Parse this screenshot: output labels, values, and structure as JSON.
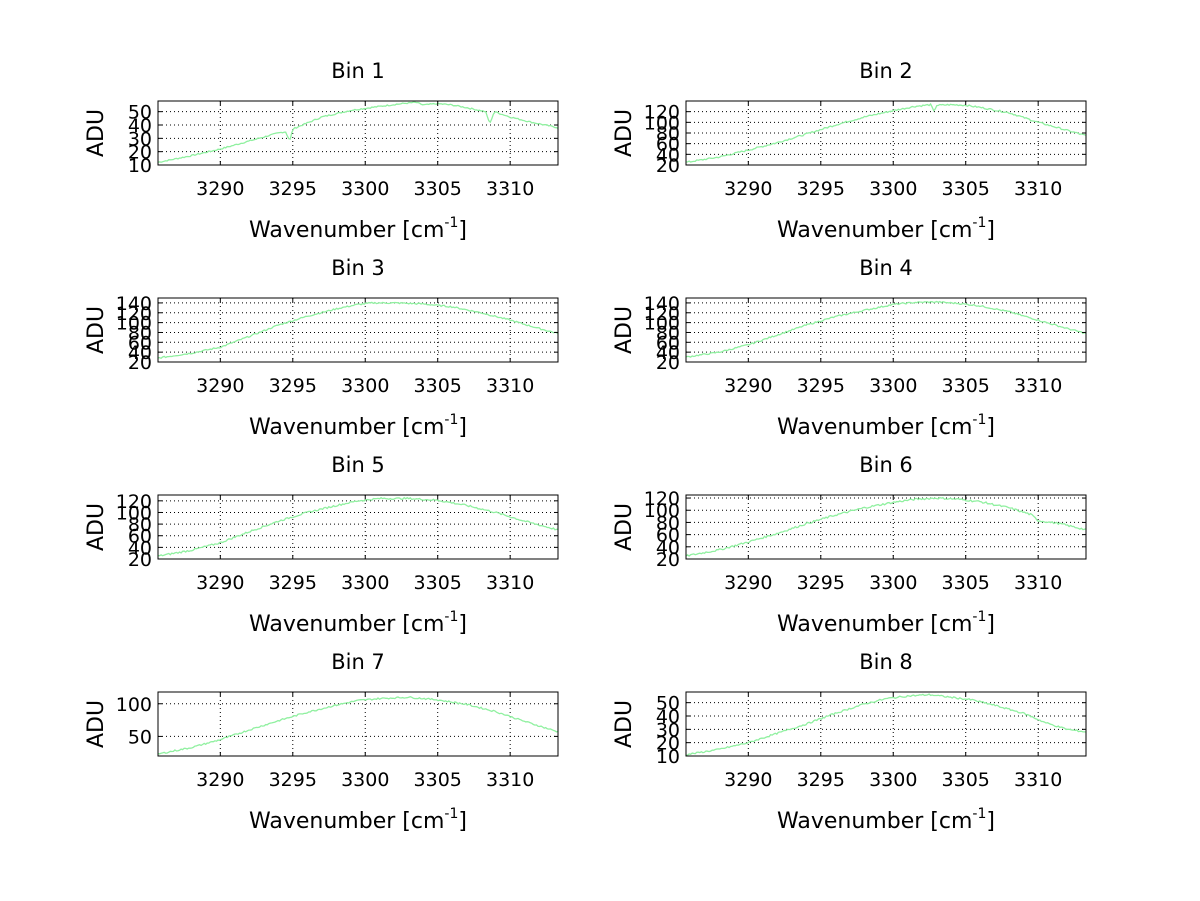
{
  "figure": {
    "series_color": "#90f0a0",
    "grid_color": "#000000"
  },
  "chart_data": [
    {
      "type": "line",
      "title": "Bin 1",
      "xlabel": "Wavenumber [cm",
      "xlabel_sup": "-1",
      "xlabel_end": "]",
      "ylabel": "ADU",
      "xlim": [
        3285.7,
        3313.3
      ],
      "ylim": [
        10,
        58
      ],
      "xticks": [
        3290,
        3295,
        3300,
        3305,
        3310
      ],
      "yticks": [
        10,
        20,
        30,
        40,
        50
      ],
      "series": [
        {
          "name": "Bin 1",
          "x": [
            3285.7,
            3288,
            3290,
            3292,
            3294,
            3294.5,
            3294.8,
            3295,
            3297,
            3299,
            3301,
            3302.5,
            3303.5,
            3304,
            3305,
            3306,
            3307,
            3308.3,
            3308.6,
            3308.9,
            3310,
            3311.5,
            3313.3
          ],
          "y": [
            12,
            17,
            22,
            28,
            34,
            35,
            28,
            37,
            46,
            51,
            54,
            56,
            57,
            55,
            56,
            55,
            53,
            50,
            41,
            50,
            46,
            42,
            38
          ],
          "noise": 0.5
        }
      ]
    },
    {
      "type": "line",
      "title": "Bin 2",
      "xlabel": "Wavenumber [cm",
      "xlabel_sup": "-1",
      "xlabel_end": "]",
      "ylabel": "ADU",
      "xlim": [
        3285.7,
        3313.3
      ],
      "ylim": [
        20,
        140
      ],
      "xticks": [
        3290,
        3295,
        3300,
        3305,
        3310
      ],
      "yticks": [
        20,
        40,
        60,
        80,
        100,
        120
      ],
      "series": [
        {
          "name": "Bin 2",
          "x": [
            3285.7,
            3288,
            3290,
            3292,
            3294,
            3296,
            3298,
            3300,
            3301.5,
            3302.6,
            3302.8,
            3303,
            3304,
            3305,
            3306,
            3308,
            3310,
            3312,
            3313.3
          ],
          "y": [
            25,
            35,
            48,
            62,
            78,
            95,
            110,
            122,
            130,
            133,
            120,
            132,
            133,
            132,
            128,
            118,
            100,
            85,
            75
          ],
          "noise": 1.5
        }
      ]
    },
    {
      "type": "line",
      "title": "Bin 3",
      "xlabel": "Wavenumber [cm",
      "xlabel_sup": "-1",
      "xlabel_end": "]",
      "ylabel": "ADU",
      "xlim": [
        3285.7,
        3313.3
      ],
      "ylim": [
        20,
        150
      ],
      "xticks": [
        3290,
        3295,
        3300,
        3305,
        3310
      ],
      "yticks": [
        20,
        40,
        60,
        80,
        100,
        120,
        140
      ],
      "series": [
        {
          "name": "Bin 3",
          "x": [
            3285.7,
            3288,
            3290,
            3292,
            3294,
            3296,
            3298,
            3299.5,
            3300.5,
            3302,
            3304,
            3306,
            3308,
            3310,
            3312,
            3313.3
          ],
          "y": [
            28,
            38,
            50,
            72,
            95,
            113,
            128,
            137,
            140,
            140,
            138,
            132,
            120,
            105,
            88,
            78
          ],
          "noise": 1.5
        }
      ]
    },
    {
      "type": "line",
      "title": "Bin 4",
      "xlabel": "Wavenumber [cm",
      "xlabel_sup": "-1",
      "xlabel_end": "]",
      "ylabel": "ADU",
      "xlim": [
        3285.7,
        3313.3
      ],
      "ylim": [
        20,
        150
      ],
      "xticks": [
        3290,
        3295,
        3300,
        3305,
        3310
      ],
      "yticks": [
        20,
        40,
        60,
        80,
        100,
        120,
        140
      ],
      "series": [
        {
          "name": "Bin 4",
          "x": [
            3285.7,
            3288,
            3290,
            3292,
            3294,
            3296,
            3298,
            3300,
            3301.5,
            3303,
            3304.5,
            3306,
            3308,
            3310,
            3312,
            3313.3
          ],
          "y": [
            30,
            40,
            55,
            75,
            95,
            112,
            125,
            137,
            141,
            142,
            139,
            134,
            122,
            105,
            88,
            78
          ],
          "noise": 1.5
        }
      ]
    },
    {
      "type": "line",
      "title": "Bin 5",
      "xlabel": "Wavenumber [cm",
      "xlabel_sup": "-1",
      "xlabel_end": "]",
      "ylabel": "ADU",
      "xlim": [
        3285.7,
        3313.3
      ],
      "ylim": [
        20,
        130
      ],
      "xticks": [
        3290,
        3295,
        3300,
        3305,
        3310
      ],
      "yticks": [
        20,
        40,
        60,
        80,
        100,
        120
      ],
      "series": [
        {
          "name": "Bin 5",
          "x": [
            3285.7,
            3288,
            3290,
            3292,
            3294,
            3296,
            3298,
            3299.5,
            3301,
            3303,
            3305,
            3307,
            3309,
            3311,
            3313.3
          ],
          "y": [
            25,
            35,
            48,
            67,
            85,
            100,
            112,
            120,
            124,
            124,
            121,
            112,
            100,
            85,
            70
          ],
          "noise": 1.5
        }
      ]
    },
    {
      "type": "line",
      "title": "Bin 6",
      "xlabel": "Wavenumber [cm",
      "xlabel_sup": "-1",
      "xlabel_end": "]",
      "ylabel": "ADU",
      "xlim": [
        3285.7,
        3313.3
      ],
      "ylim": [
        20,
        125
      ],
      "xticks": [
        3290,
        3295,
        3300,
        3305,
        3310
      ],
      "yticks": [
        20,
        40,
        60,
        80,
        100,
        120
      ],
      "series": [
        {
          "name": "Bin 6",
          "x": [
            3285.7,
            3288,
            3290,
            3292,
            3294,
            3296,
            3298,
            3300,
            3301.5,
            3303,
            3304.5,
            3306,
            3308,
            3309.5,
            3310,
            3311.5,
            3313.3
          ],
          "y": [
            25,
            35,
            48,
            62,
            78,
            92,
            104,
            113,
            118,
            120,
            118,
            114,
            104,
            93,
            83,
            78,
            68
          ],
          "noise": 1.5
        }
      ]
    },
    {
      "type": "line",
      "title": "Bin 7",
      "xlabel": "Wavenumber [cm",
      "xlabel_sup": "-1",
      "xlabel_end": "]",
      "ylabel": "ADU",
      "xlim": [
        3285.7,
        3313.3
      ],
      "ylim": [
        20,
        118
      ],
      "xticks": [
        3290,
        3295,
        3300,
        3305,
        3310
      ],
      "yticks": [
        50,
        100
      ],
      "series": [
        {
          "name": "Bin 7",
          "x": [
            3285.7,
            3288,
            3290,
            3292,
            3294,
            3296,
            3298,
            3299.5,
            3301,
            3303,
            3305,
            3307,
            3309,
            3311,
            3313.3
          ],
          "y": [
            23,
            33,
            45,
            60,
            74,
            87,
            98,
            105,
            108,
            110,
            106,
            99,
            88,
            73,
            57
          ],
          "noise": 1.2
        }
      ]
    },
    {
      "type": "line",
      "title": "Bin 8",
      "xlabel": "Wavenumber [cm",
      "xlabel_sup": "-1",
      "xlabel_end": "]",
      "ylabel": "ADU",
      "xlim": [
        3285.7,
        3313.3
      ],
      "ylim": [
        10,
        58
      ],
      "xticks": [
        3290,
        3295,
        3300,
        3305,
        3310
      ],
      "yticks": [
        10,
        20,
        30,
        40,
        50
      ],
      "series": [
        {
          "name": "Bin 8",
          "x": [
            3285.7,
            3288,
            3290,
            3292,
            3294,
            3296,
            3298,
            3299.5,
            3301,
            3302.5,
            3304,
            3305.5,
            3307,
            3309,
            3310.5,
            3312,
            3313.3
          ],
          "y": [
            11,
            15,
            20,
            27,
            34,
            42,
            49,
            53,
            55,
            56,
            54,
            52,
            48,
            42,
            35,
            30,
            28
          ],
          "noise": 0.6
        }
      ]
    }
  ]
}
